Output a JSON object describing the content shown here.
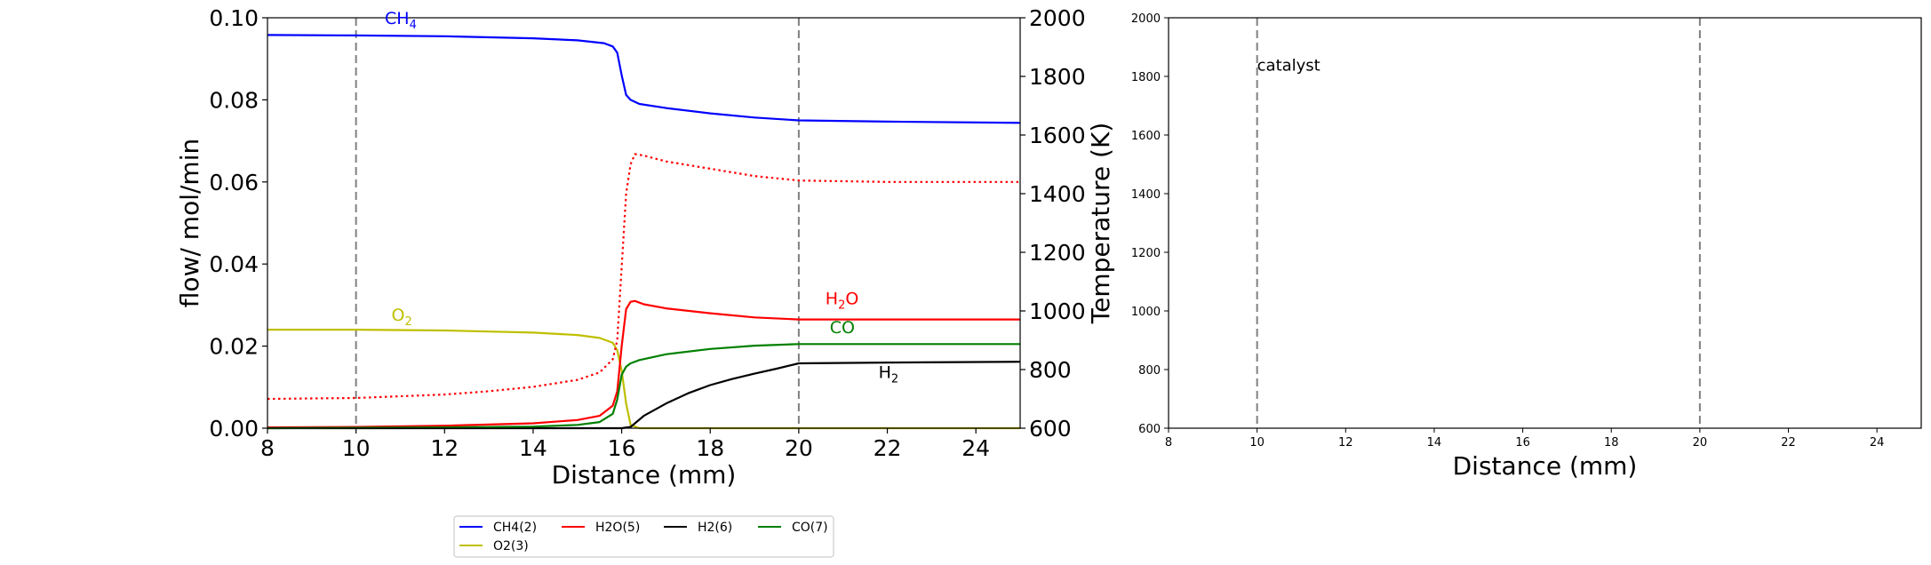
{
  "chart_data": [
    {
      "type": "line",
      "xlabel": "Distance (mm)",
      "ylabel": "flow/ mol/min",
      "ylabel_right": "Temperature (K)",
      "xlim": [
        8,
        25
      ],
      "ylim": [
        0.0,
        0.1
      ],
      "ylim_right": [
        600,
        2000
      ],
      "x_ticks": [
        "8",
        "10",
        "12",
        "14",
        "16",
        "18",
        "20",
        "22",
        "24"
      ],
      "y_ticks": [
        "0.00",
        "0.02",
        "0.04",
        "0.06",
        "0.08",
        "0.10"
      ],
      "y_ticks_right": [
        "600",
        "800",
        "1000",
        "1200",
        "1400",
        "1600",
        "1800",
        "2000"
      ],
      "grid": false,
      "vlines": [
        10,
        20
      ],
      "annotations": [
        {
          "base": "CH",
          "sub": "4",
          "x": 10.65,
          "y": 0.0985,
          "color": "#0000ff"
        },
        {
          "base": "O",
          "sub": "2",
          "x": 10.8,
          "y": 0.0262,
          "color": "#bfbf00"
        },
        {
          "base": "H",
          "sub": "2",
          "post": "O",
          "x": 20.6,
          "y": 0.0302,
          "color": "#ff0000"
        },
        {
          "base": "CO",
          "sub": "",
          "x": 20.7,
          "y": 0.0232,
          "color": "#008000"
        },
        {
          "base": "H",
          "sub": "2",
          "x": 21.8,
          "y": 0.0122,
          "color": "#000000"
        }
      ],
      "series": [
        {
          "name": "CH4(2)",
          "color": "#0000ff",
          "style": "solid",
          "axis": "left",
          "x": [
            8,
            10,
            12,
            14,
            15,
            15.6,
            15.8,
            15.9,
            16.0,
            16.1,
            16.2,
            16.4,
            17,
            18,
            19,
            20,
            22,
            25
          ],
          "y": [
            0.0958,
            0.0957,
            0.0955,
            0.095,
            0.0945,
            0.0938,
            0.093,
            0.0915,
            0.086,
            0.0812,
            0.08,
            0.079,
            0.078,
            0.0767,
            0.0757,
            0.075,
            0.0747,
            0.0744
          ]
        },
        {
          "name": "O2(3)",
          "color": "#bfbf00",
          "style": "solid",
          "axis": "left",
          "x": [
            8,
            10,
            12,
            14,
            15,
            15.5,
            15.8,
            15.9,
            16.0,
            16.1,
            16.2,
            16.4,
            18,
            25
          ],
          "y": [
            0.024,
            0.024,
            0.0238,
            0.0233,
            0.0227,
            0.022,
            0.0208,
            0.019,
            0.014,
            0.006,
            0.0008,
            0.0,
            0.0,
            0.0
          ]
        },
        {
          "name": "H2O(5)",
          "color": "#ff0000",
          "style": "solid",
          "axis": "left",
          "x": [
            8,
            10,
            12,
            14,
            15,
            15.5,
            15.8,
            15.9,
            16.0,
            16.1,
            16.2,
            16.3,
            16.5,
            17,
            18,
            19,
            20,
            22,
            25
          ],
          "y": [
            0.0002,
            0.0003,
            0.0006,
            0.0012,
            0.002,
            0.003,
            0.0055,
            0.009,
            0.02,
            0.029,
            0.0308,
            0.031,
            0.0302,
            0.0292,
            0.028,
            0.027,
            0.0265,
            0.0265,
            0.0265
          ]
        },
        {
          "name": "H2(6)",
          "color": "#000000",
          "style": "solid",
          "axis": "left",
          "x": [
            8,
            15,
            16,
            16.2,
            16.5,
            17,
            17.5,
            18,
            18.5,
            19,
            19.5,
            20,
            22,
            25
          ],
          "y": [
            0.0,
            0.0,
            0.0,
            0.0003,
            0.003,
            0.006,
            0.0085,
            0.0105,
            0.012,
            0.0133,
            0.0145,
            0.0158,
            0.016,
            0.0162
          ]
        },
        {
          "name": "CO(7)",
          "color": "#008000",
          "style": "solid",
          "axis": "left",
          "x": [
            8,
            12,
            14,
            15,
            15.5,
            15.8,
            15.9,
            16.0,
            16.1,
            16.2,
            16.4,
            17,
            18,
            19,
            20,
            22,
            25
          ],
          "y": [
            0.0,
            0.0002,
            0.0004,
            0.0008,
            0.0015,
            0.0035,
            0.007,
            0.013,
            0.015,
            0.0158,
            0.0166,
            0.018,
            0.0193,
            0.0201,
            0.0205,
            0.0205,
            0.0205
          ]
        },
        {
          "name": "",
          "color": "#ff0000",
          "style": "dotted",
          "axis": "right",
          "x": [
            8,
            10,
            12,
            13,
            14,
            15,
            15.5,
            15.8,
            15.9,
            16.0,
            16.1,
            16.2,
            16.3,
            16.5,
            17,
            18,
            19,
            20,
            22,
            25
          ],
          "y": [
            700,
            703,
            715,
            726,
            741,
            765,
            790,
            835,
            900,
            1150,
            1400,
            1500,
            1535,
            1530,
            1510,
            1485,
            1460,
            1445,
            1440,
            1440
          ]
        }
      ]
    },
    {
      "type": "line",
      "xlabel": "Distance (mm)",
      "xlim": [
        8,
        25
      ],
      "ylim": [
        600,
        2000
      ],
      "x_ticks": [
        "8",
        "10",
        "12",
        "14",
        "16",
        "18",
        "20",
        "22",
        "24"
      ],
      "y_ticks": [
        "600",
        "800",
        "1000",
        "1200",
        "1400",
        "1600",
        "1800",
        "2000"
      ],
      "grid": false,
      "vlines": [
        10,
        20
      ],
      "annotation": {
        "text": "catalyst",
        "x": 10.0,
        "y": 1820
      },
      "series": []
    }
  ],
  "legend": {
    "placement": "below left panel",
    "entries": [
      {
        "label": "CH4(2)",
        "color": "#0000ff"
      },
      {
        "label": "H2O(5)",
        "color": "#ff0000"
      },
      {
        "label": "H2(6)",
        "color": "#000000"
      },
      {
        "label": "CO(7)",
        "color": "#008000"
      },
      {
        "label": "O2(3)",
        "color": "#bfbf00"
      }
    ]
  }
}
